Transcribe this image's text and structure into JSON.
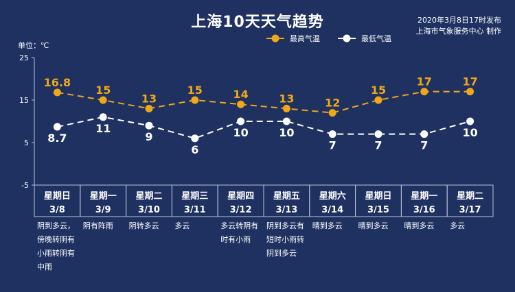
{
  "header": {
    "title": "上海10天天气趋势",
    "publish_line1": "2020年3月8日17时发布",
    "publish_line2": "上海市气象服务中心 制作",
    "unit_label": "单位：℃"
  },
  "colors": {
    "background": "#1f3161",
    "high": "#f0a818",
    "low": "#ffffff",
    "grid": "#b8c2d8"
  },
  "chart_data": {
    "type": "line",
    "x": [
      "3/8",
      "3/9",
      "3/10",
      "3/11",
      "3/12",
      "3/13",
      "3/14",
      "3/15",
      "3/16",
      "3/17"
    ],
    "weekdays": [
      "星期日",
      "星期一",
      "星期二",
      "星期三",
      "星期四",
      "星期五",
      "星期六",
      "星期日",
      "星期一",
      "星期二"
    ],
    "descriptions": [
      "阴到多云，\n傍晚转阴有\n小雨转阴有\n中雨",
      "阴有阵雨",
      "阴转多云",
      "多云",
      "多云转阴有\n时有小雨",
      "阴到多云有\n短时小雨转\n阴到多云",
      "晴到多云",
      "晴到多云",
      "晴到多云",
      "多云"
    ],
    "series": [
      {
        "name": "最高气温",
        "values": [
          16.8,
          15,
          13,
          15,
          14,
          13,
          12,
          15,
          17,
          17
        ],
        "labels": [
          "16.8",
          "15",
          "13",
          "15",
          "14",
          "13",
          "12",
          "15",
          "17",
          "17"
        ]
      },
      {
        "name": "最低气温",
        "values": [
          8.7,
          11,
          9,
          6,
          10,
          10,
          7,
          7,
          7,
          10
        ],
        "labels": [
          "8.7",
          "11",
          "9",
          "6",
          "10",
          "10",
          "7",
          "7",
          "7",
          "10"
        ]
      }
    ],
    "ylim": [
      -5,
      25
    ],
    "yticks": [
      "25",
      "15",
      "5",
      "-5"
    ],
    "grid": false,
    "legend": "top-right"
  }
}
